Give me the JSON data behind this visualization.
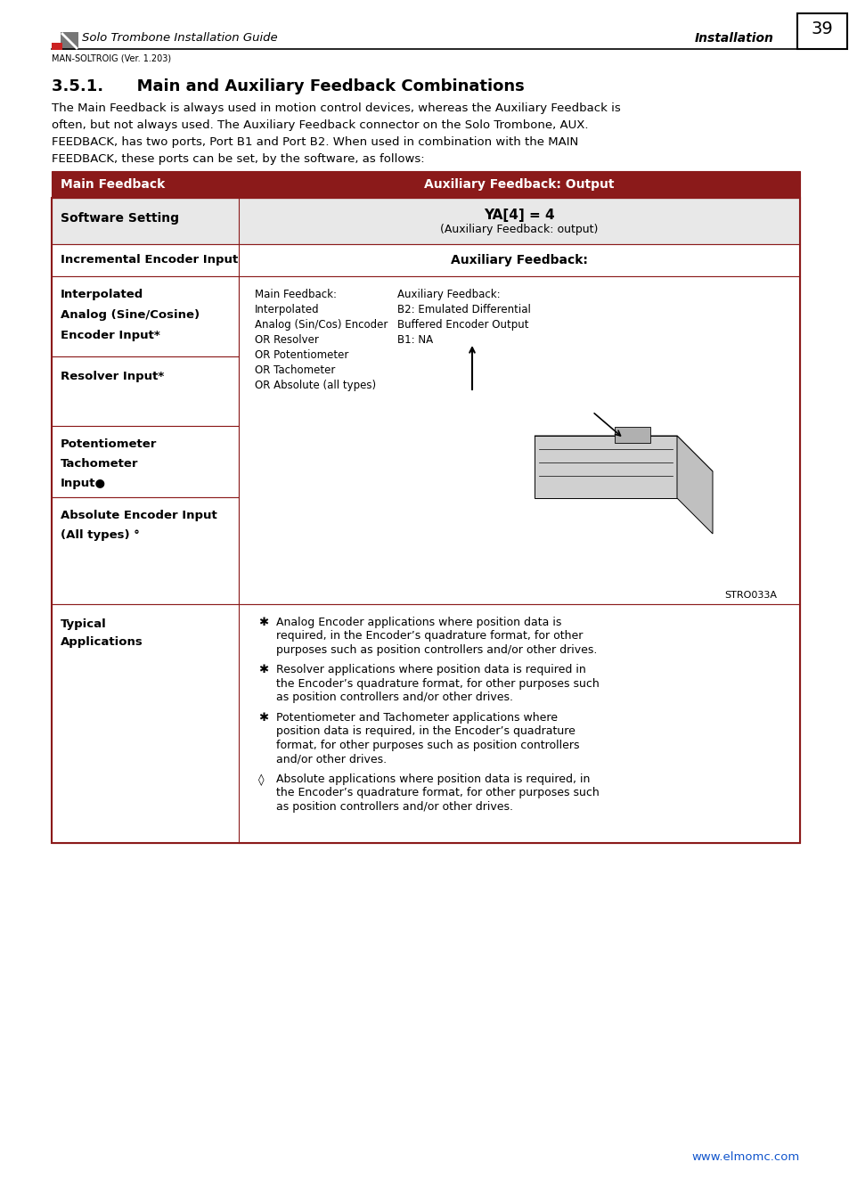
{
  "page_bg": "#ffffff",
  "dark_red": "#8B1A1A",
  "light_gray": "#E8E8E8",
  "white": "#ffffff",
  "black": "#000000",
  "link_color": "#1155CC",
  "header_logo_text": "Solo Trombone Installation Guide",
  "header_right": "Installation",
  "page_number": "39",
  "version_text": "MAN-SOLTROIG (Ver. 1.203)",
  "section_title": "3.5.1.      Main and Auxiliary Feedback Combinations",
  "intro_lines": [
    "The Main Feedback is always used in motion control devices, whereas the Auxiliary Feedback is",
    "often, but not always used. The Auxiliary Feedback connector on the Solo Trombone, AUX.",
    "FEEDBACK, has two ports, Port B1 and Port B2. When used in combination with the MAIN",
    "FEEDBACK, these ports can be set, by the software, as follows:"
  ],
  "table_header_col1": "Main Feedback",
  "table_header_col2": "Auxiliary Feedback: Output",
  "row1_col1": "Software Setting",
  "row1_col2_line1": "YA[4] = 4",
  "row1_col2_line2": "(Auxiliary Feedback: output)",
  "row2_col1": "Incremental Encoder Input",
  "row2_col2": "Auxiliary Feedback:",
  "row3_col1_lines": [
    "Interpolated",
    "Analog (Sine/Cosine)",
    "Encoder Input*"
  ],
  "row3_col2_left_lines": [
    "Main Feedback:",
    "Interpolated",
    "Analog (Sin/Cos) Encoder",
    "OR Resolver",
    "OR Potentiometer",
    "OR Tachometer",
    "OR Absolute (all types)"
  ],
  "row3_col2_right_lines": [
    "Auxiliary Feedback:",
    "B2: Emulated Differential",
    "Buffered Encoder Output",
    "B1: NA"
  ],
  "row4_col1": "Resolver Input*",
  "row5_col1_lines": [
    "Potentiometer",
    "Tachometer",
    "Input●"
  ],
  "row6_col1_lines": [
    "Absolute Encoder Input",
    "(All types) °"
  ],
  "image_caption": "STRO033A",
  "typical_col1_lines": [
    "Typical",
    "Applications"
  ],
  "typical_col2_bullets": [
    {
      "symbol": "*",
      "text": "Analog Encoder applications where position data is\nrequired, in the Encoder’s quadrature format, for other\npurposes such as position controllers and/or other drives."
    },
    {
      "symbol": "*",
      "text": "Resolver applications where position data is required in\nthe Encoder’s quadrature format, for other purposes such\nas position controllers and/or other drives."
    },
    {
      "symbol": "✱",
      "text": "Potentiometer and Tachometer applications where\nposition data is required, in the Encoder’s quadrature\nformat, for other purposes such as position controllers\nand/or other drives."
    },
    {
      "symbol": "◊",
      "text": "Absolute applications where position data is required, in\nthe Encoder’s quadrature format, for other purposes such\nas position controllers and/or other drives."
    }
  ],
  "footer_link": "www.elmomc.com"
}
